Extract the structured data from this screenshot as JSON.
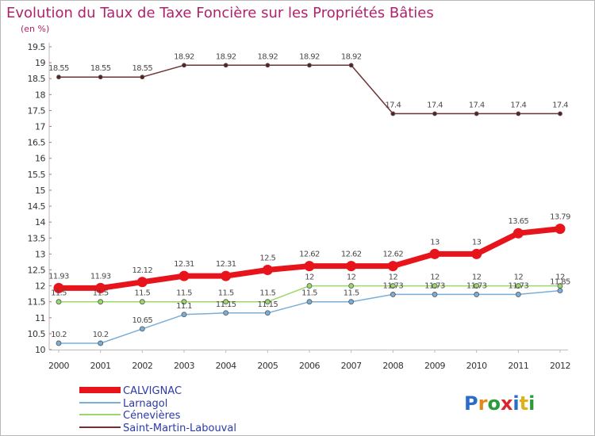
{
  "title": "Evolution du Taux de Taxe Foncière sur les Propriétés Bâties",
  "subtitle": "(en %)",
  "logo": {
    "letters": [
      "P",
      "r",
      "o",
      "x",
      "i",
      "t",
      "i"
    ],
    "colors": [
      "#2a6cc9",
      "#e08a1a",
      "#2a9a3a",
      "#d9262c",
      "#2a6cc9",
      "#e0b01a",
      "#2a9a3a"
    ]
  },
  "chart_data": {
    "type": "line",
    "x": [
      "2000",
      "2001",
      "2002",
      "2003",
      "2004",
      "2005",
      "2006",
      "2007",
      "2008",
      "2009",
      "2010",
      "2011",
      "2012"
    ],
    "ylim": [
      10,
      19.5
    ],
    "yticks": [
      "10",
      "10.5",
      "11",
      "11.5",
      "12",
      "12.5",
      "13",
      "13.5",
      "14",
      "14.5",
      "15",
      "15.5",
      "16",
      "16.5",
      "17",
      "17.5",
      "18",
      "18.5",
      "19",
      "19.5"
    ],
    "grid": false,
    "legend_position": "bottom-left",
    "series": [
      {
        "name": "CALVIGNAC",
        "color": "#e8141c",
        "values": [
          11.93,
          11.93,
          12.12,
          12.31,
          12.31,
          12.5,
          12.62,
          12.62,
          12.62,
          13,
          13,
          13.65,
          13.79
        ],
        "labels": [
          "11.93",
          "11.93",
          "12.12",
          "12.31",
          "12.31",
          "12.5",
          "12.62",
          "12.62",
          "12.62",
          "13",
          "13",
          "13.65",
          "13.79"
        ]
      },
      {
        "name": "Larnagol",
        "color": "#7aaed6",
        "values": [
          10.2,
          10.2,
          10.65,
          11.1,
          11.15,
          11.15,
          11.5,
          11.5,
          11.73,
          11.73,
          11.73,
          11.73,
          11.85
        ],
        "labels": [
          "10.2",
          "10.2",
          "10.65",
          "11.1",
          "11.15",
          "11.15",
          "11.5",
          "11.5",
          "11.73",
          "11.73",
          "11.73",
          "11.73",
          "11.85"
        ]
      },
      {
        "name": "Cénevières",
        "color": "#9ad86a",
        "values": [
          11.5,
          11.5,
          11.5,
          11.5,
          11.5,
          11.5,
          12,
          12,
          12,
          12,
          12,
          12,
          12
        ],
        "labels": [
          "11.5",
          "11.5",
          "11.5",
          "11.5",
          "11.5",
          "11.5",
          "12",
          "12",
          "12",
          "12",
          "12",
          "12",
          "12"
        ]
      },
      {
        "name": "Saint-Martin-Labouval",
        "color": "#6e3232",
        "values": [
          18.55,
          18.55,
          18.55,
          18.92,
          18.92,
          18.92,
          18.92,
          18.92,
          17.4,
          17.4,
          17.4,
          17.4,
          17.4
        ],
        "labels": [
          "18.55",
          "18.55",
          "18.55",
          "18.92",
          "18.92",
          "18.92",
          "18.92",
          "18.92",
          "17.4",
          "17.4",
          "17.4",
          "17.4",
          "17.4"
        ]
      }
    ]
  }
}
